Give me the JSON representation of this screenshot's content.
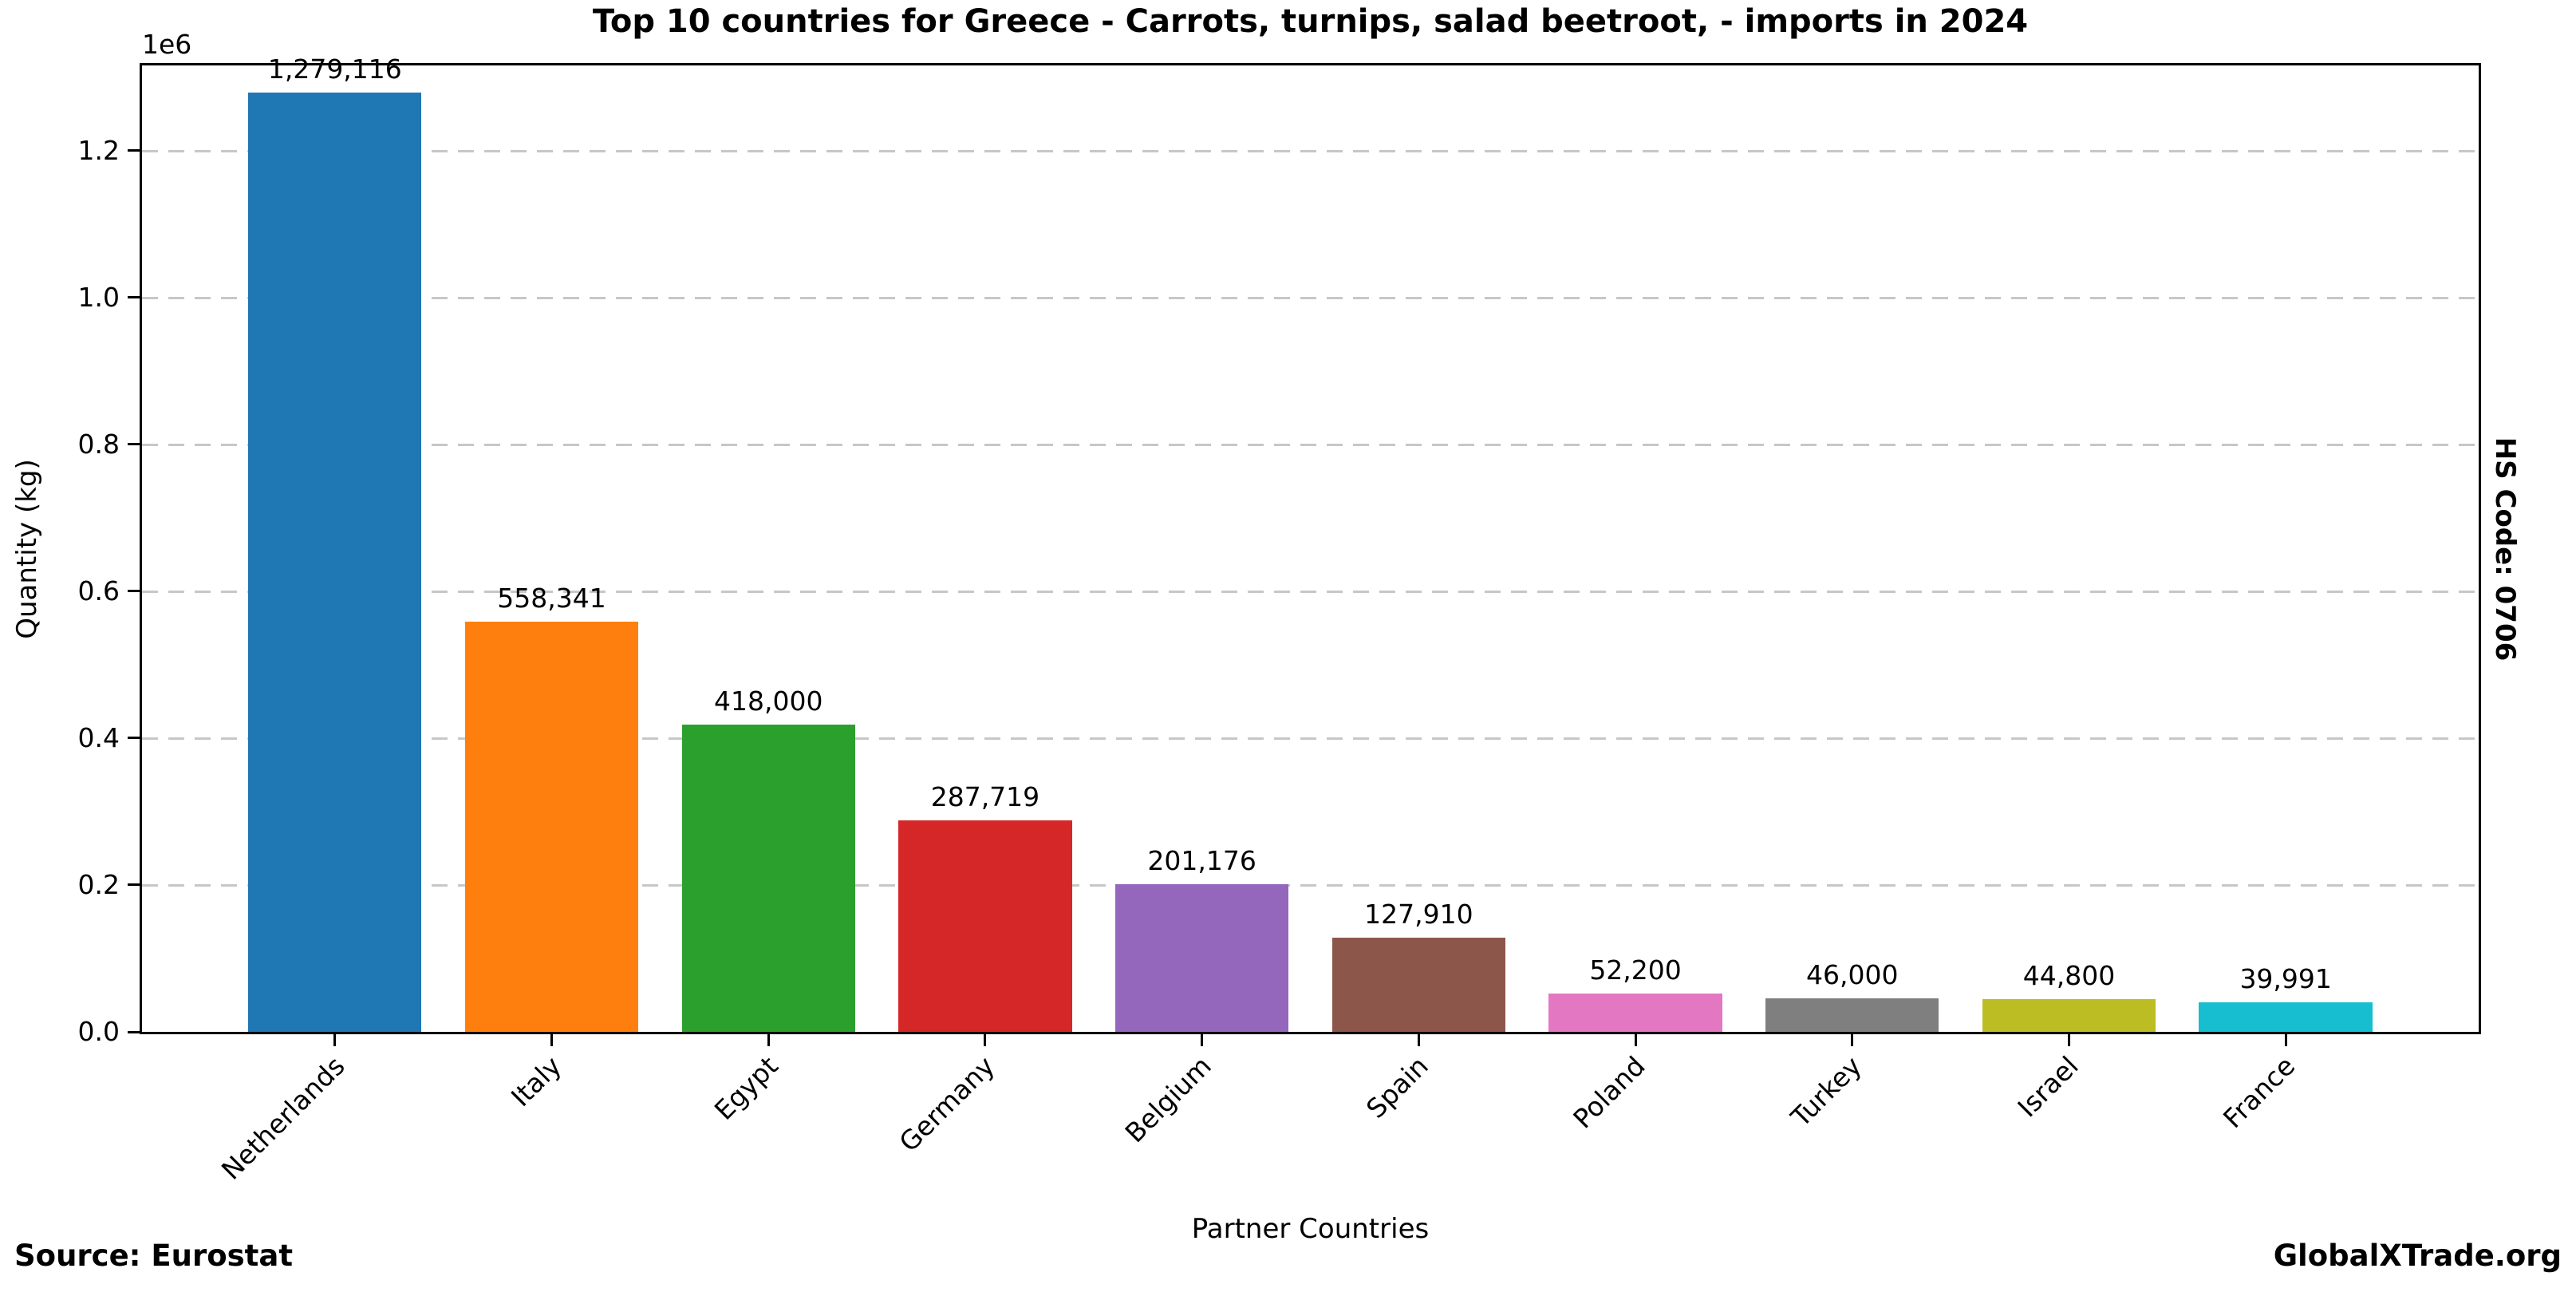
{
  "side_label": "HS Code: 0706",
  "source_label": "Source: Eurostat",
  "brand_label": "GlobalXTrade.org",
  "chart_data": {
    "type": "bar",
    "title": "Top 10 countries for Greece - Carrots, turnips, salad beetroot, - imports in 2024",
    "xlabel": "Partner Countries",
    "ylabel": "Quantity (kg)",
    "y_offset_text": "1e6",
    "ylim": [
      0,
      1316000
    ],
    "yticks": {
      "values": [
        0,
        200000,
        400000,
        600000,
        800000,
        1000000,
        1200000
      ],
      "labels": [
        "0.0",
        "0.2",
        "0.4",
        "0.6",
        "0.8",
        "1.0",
        "1.2"
      ]
    },
    "grid": {
      "axis": "y",
      "style": "dashed",
      "color": "#c7c7c7"
    },
    "legend": "none",
    "categories": [
      "Netherlands",
      "Italy",
      "Egypt",
      "Germany",
      "Belgium",
      "Spain",
      "Poland",
      "Turkey",
      "Israel",
      "France"
    ],
    "values": [
      1279116,
      558341,
      418000,
      287719,
      201176,
      127910,
      52200,
      46000,
      44800,
      39991
    ],
    "value_labels": [
      "1,279,116",
      "558,341",
      "418,000",
      "287,719",
      "201,176",
      "127,910",
      "52,200",
      "46,000",
      "44,800",
      "39,991"
    ],
    "bar_colors": [
      "#1f77b4",
      "#ff7f0e",
      "#2ca02c",
      "#d62728",
      "#9467bd",
      "#8c564b",
      "#e377c2",
      "#7f7f7f",
      "#bcbd22",
      "#17becf"
    ]
  }
}
